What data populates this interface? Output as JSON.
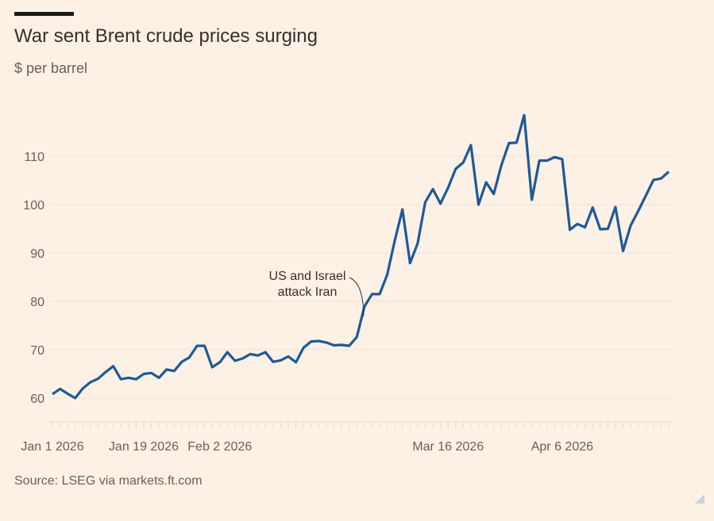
{
  "header": {
    "title": "War sent Brent crude prices surging",
    "subtitle": "$ per barrel"
  },
  "footer": {
    "source": "Source: LSEG via markets.ft.com"
  },
  "colors": {
    "background": "#fdf1e6",
    "line": "#1d5a97",
    "grid": "#efe3d8",
    "text": "#66605c"
  },
  "chart_data": {
    "type": "line",
    "title": "War sent Brent crude prices surging",
    "ylabel": "$ per barrel",
    "xlabel": "",
    "ylim": [
      55,
      120
    ],
    "yticks": [
      60,
      70,
      80,
      90,
      100,
      110
    ],
    "grid": true,
    "xticks": [
      {
        "index": 0,
        "label": "Jan 1 2026"
      },
      {
        "index": 12,
        "label": "Jan 19 2026"
      },
      {
        "index": 22,
        "label": "Feb 2 2026"
      },
      {
        "index": 52,
        "label": "Mar 16 2026"
      },
      {
        "index": 67,
        "label": "Apr 6 2026"
      }
    ],
    "annotation": {
      "text": [
        "US and Israel",
        "attack Iran"
      ],
      "index": 41
    },
    "series": [
      {
        "name": "Brent crude",
        "values": [
          60.8,
          61.9,
          60.9,
          60.0,
          62.0,
          63.3,
          64.0,
          65.4,
          66.6,
          63.9,
          64.2,
          63.9,
          65.0,
          65.2,
          64.2,
          65.9,
          65.6,
          67.5,
          68.4,
          70.8,
          70.8,
          66.4,
          67.4,
          69.5,
          67.7,
          68.2,
          69.1,
          68.8,
          69.5,
          67.5,
          67.8,
          68.6,
          67.4,
          70.4,
          71.7,
          71.8,
          71.5,
          70.9,
          71.0,
          70.8,
          72.6,
          78.9,
          81.5,
          81.5,
          85.5,
          92.6,
          99.0,
          87.9,
          92.0,
          100.5,
          103.2,
          100.2,
          103.5,
          107.4,
          108.7,
          112.3,
          100.0,
          104.6,
          102.2,
          108.1,
          112.7,
          112.8,
          118.5,
          101.0,
          109.1,
          109.1,
          109.8,
          109.4,
          94.8,
          96.0,
          95.3,
          99.4,
          94.9,
          95.0,
          99.5,
          90.4,
          95.7,
          98.7,
          101.9,
          105.1,
          105.4,
          106.8
        ]
      }
    ]
  }
}
